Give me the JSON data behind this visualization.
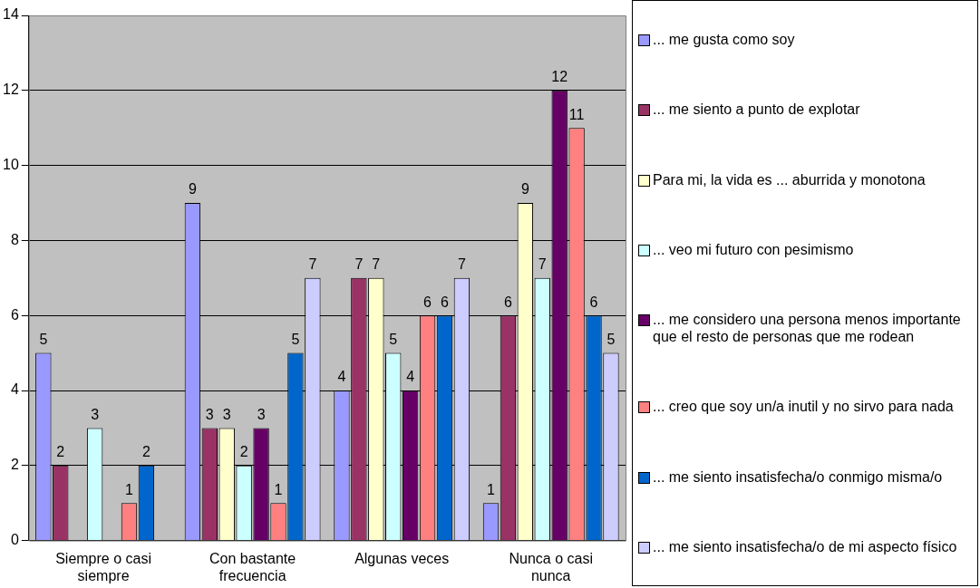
{
  "chart_data": {
    "type": "bar",
    "categories": [
      "Siempre o casi siempre",
      "Con bastante frecuencia",
      "Algunas veces",
      "Nunca o casi nunca"
    ],
    "series": [
      {
        "name": "... me gusta como soy",
        "color": "#9999ff",
        "values": [
          5,
          9,
          4,
          1
        ]
      },
      {
        "name": "... me siento a punto de explotar",
        "color": "#993366",
        "values": [
          2,
          3,
          7,
          6
        ]
      },
      {
        "name": "Para mi, la vida es ... aburrida y monotona",
        "color": "#ffffcc",
        "values": [
          null,
          3,
          7,
          9
        ]
      },
      {
        "name": "... veo mi futuro con pesimismo",
        "color": "#ccffff",
        "values": [
          3,
          2,
          5,
          7
        ]
      },
      {
        "name": "... me considero una persona menos importante que el resto de personas que me rodean",
        "color": "#660066",
        "values": [
          null,
          3,
          4,
          12
        ]
      },
      {
        "name": "... creo que soy un/a inutil y no sirvo para nada",
        "color": "#ff8080",
        "values": [
          1,
          1,
          6,
          11
        ]
      },
      {
        "name": "... me siento insatisfecha/o conmigo misma/o",
        "color": "#0066cc",
        "values": [
          2,
          5,
          6,
          6
        ]
      },
      {
        "name": "... me siento insatisfecha/o de mi aspecto físico",
        "color": "#ccccff",
        "values": [
          null,
          7,
          7,
          5
        ]
      }
    ],
    "ylim": [
      0,
      14
    ],
    "yticks": [
      0,
      2,
      4,
      6,
      8,
      10,
      12,
      14
    ],
    "grid": "y",
    "legend": "right",
    "data_labels": true
  }
}
